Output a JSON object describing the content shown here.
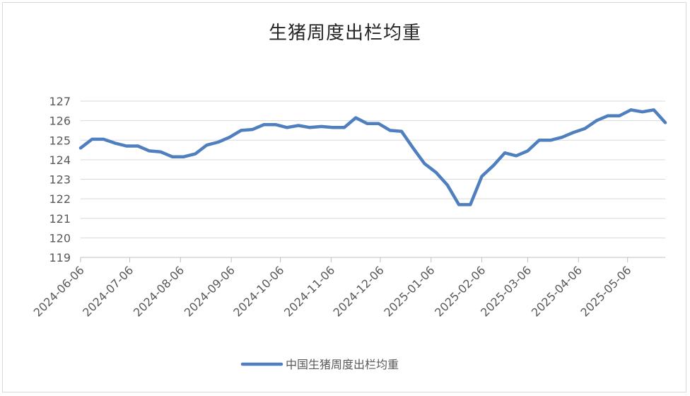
{
  "chart_data": {
    "type": "line",
    "title": "生猪周度出栏均重",
    "xlabel": "",
    "ylabel": "",
    "ylim": [
      119,
      127
    ],
    "yticks": [
      119,
      120,
      121,
      122,
      123,
      124,
      125,
      126,
      127
    ],
    "xtick_labels": [
      "2024-06-06",
      "2024-07-06",
      "2024-08-06",
      "2024-09-06",
      "2024-10-06",
      "2024-11-06",
      "2024-12-06",
      "2025-01-06",
      "2025-02-06",
      "2025-03-06",
      "2025-04-06",
      "2025-05-06"
    ],
    "grid": true,
    "legend_position": "bottom",
    "series": [
      {
        "name": "中国生猪周度出栏均重",
        "color": "#4f7fbf",
        "x": [
          "2024-06-06",
          "2024-06-13",
          "2024-06-20",
          "2024-06-27",
          "2024-07-04",
          "2024-07-11",
          "2024-07-18",
          "2024-07-25",
          "2024-08-01",
          "2024-08-08",
          "2024-08-15",
          "2024-08-22",
          "2024-08-29",
          "2024-09-05",
          "2024-09-12",
          "2024-09-19",
          "2024-09-26",
          "2024-10-03",
          "2024-10-10",
          "2024-10-17",
          "2024-10-24",
          "2024-10-31",
          "2024-11-07",
          "2024-11-14",
          "2024-11-21",
          "2024-11-28",
          "2024-12-05",
          "2024-12-12",
          "2024-12-19",
          "2024-12-26",
          "2025-01-02",
          "2025-01-09",
          "2025-01-16",
          "2025-01-23",
          "2025-01-30",
          "2025-02-06",
          "2025-02-13",
          "2025-02-20",
          "2025-02-27",
          "2025-03-06",
          "2025-03-13",
          "2025-03-20",
          "2025-03-27",
          "2025-04-03",
          "2025-04-10",
          "2025-04-17",
          "2025-04-24",
          "2025-05-01",
          "2025-05-08",
          "2025-05-15",
          "2025-05-22",
          "2025-05-29"
        ],
        "values": [
          124.6,
          125.05,
          125.05,
          124.85,
          124.7,
          124.7,
          124.45,
          124.4,
          124.15,
          124.15,
          124.3,
          124.75,
          124.9,
          125.15,
          125.5,
          125.55,
          125.8,
          125.8,
          125.65,
          125.75,
          125.65,
          125.7,
          125.65,
          125.65,
          126.15,
          125.85,
          125.85,
          125.5,
          125.45,
          124.6,
          123.8,
          123.35,
          122.7,
          121.7,
          121.7,
          123.15,
          123.7,
          124.35,
          124.2,
          124.45,
          125.0,
          125.0,
          125.15,
          125.4,
          125.6,
          126.0,
          126.25,
          126.25,
          126.55,
          126.45,
          126.55,
          125.9
        ]
      }
    ]
  }
}
